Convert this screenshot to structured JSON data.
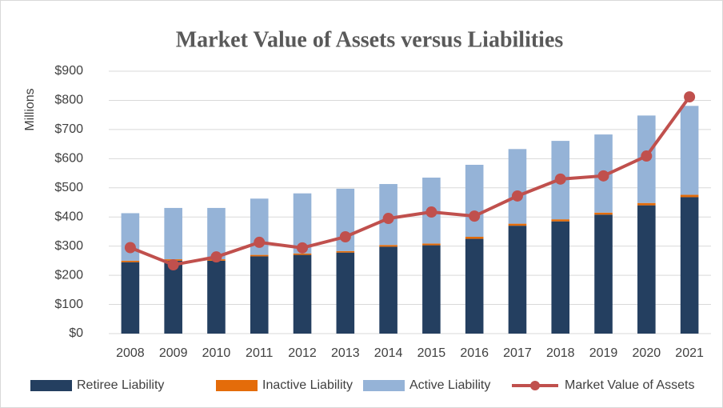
{
  "chart_data": {
    "type": "bar",
    "title": "Market Value of Assets versus Liabilities",
    "y_axis_label": "Millions",
    "categories": [
      "2008",
      "2009",
      "2010",
      "2011",
      "2012",
      "2013",
      "2014",
      "2015",
      "2016",
      "2017",
      "2018",
      "2019",
      "2020",
      "2021"
    ],
    "series": [
      {
        "name": "Retiree Liability",
        "type": "bar",
        "color": "#243f60",
        "values": [
          245,
          250,
          250,
          265,
          270,
          278,
          298,
          303,
          325,
          370,
          385,
          408,
          440,
          468
        ]
      },
      {
        "name": "Inactive Liability",
        "type": "bar",
        "color": "#e46c0a",
        "values": [
          5,
          5,
          5,
          5,
          5,
          5,
          6,
          6,
          7,
          7,
          7,
          7,
          8,
          8
        ]
      },
      {
        "name": "Active Liability",
        "type": "bar",
        "color": "#95b3d7",
        "values": [
          163,
          176,
          176,
          193,
          206,
          214,
          209,
          226,
          247,
          256,
          269,
          268,
          300,
          305
        ]
      },
      {
        "name": "Market Value of Assets",
        "type": "line",
        "color": "#c0504d",
        "values": [
          295,
          236,
          263,
          313,
          294,
          332,
          395,
          417,
          403,
          472,
          530,
          541,
          609,
          812
        ]
      }
    ],
    "stacked": true,
    "ylim": [
      0,
      900
    ],
    "yticks": [
      {
        "value": 0,
        "label": "$0"
      },
      {
        "value": 100,
        "label": "$100"
      },
      {
        "value": 200,
        "label": "$200"
      },
      {
        "value": 300,
        "label": "$300"
      },
      {
        "value": 400,
        "label": "$400"
      },
      {
        "value": 500,
        "label": "$500"
      },
      {
        "value": 600,
        "label": "$600"
      },
      {
        "value": 700,
        "label": "$700"
      },
      {
        "value": 800,
        "label": "$800"
      },
      {
        "value": 900,
        "label": "$900"
      }
    ],
    "grid": true,
    "legend": "bottom"
  }
}
